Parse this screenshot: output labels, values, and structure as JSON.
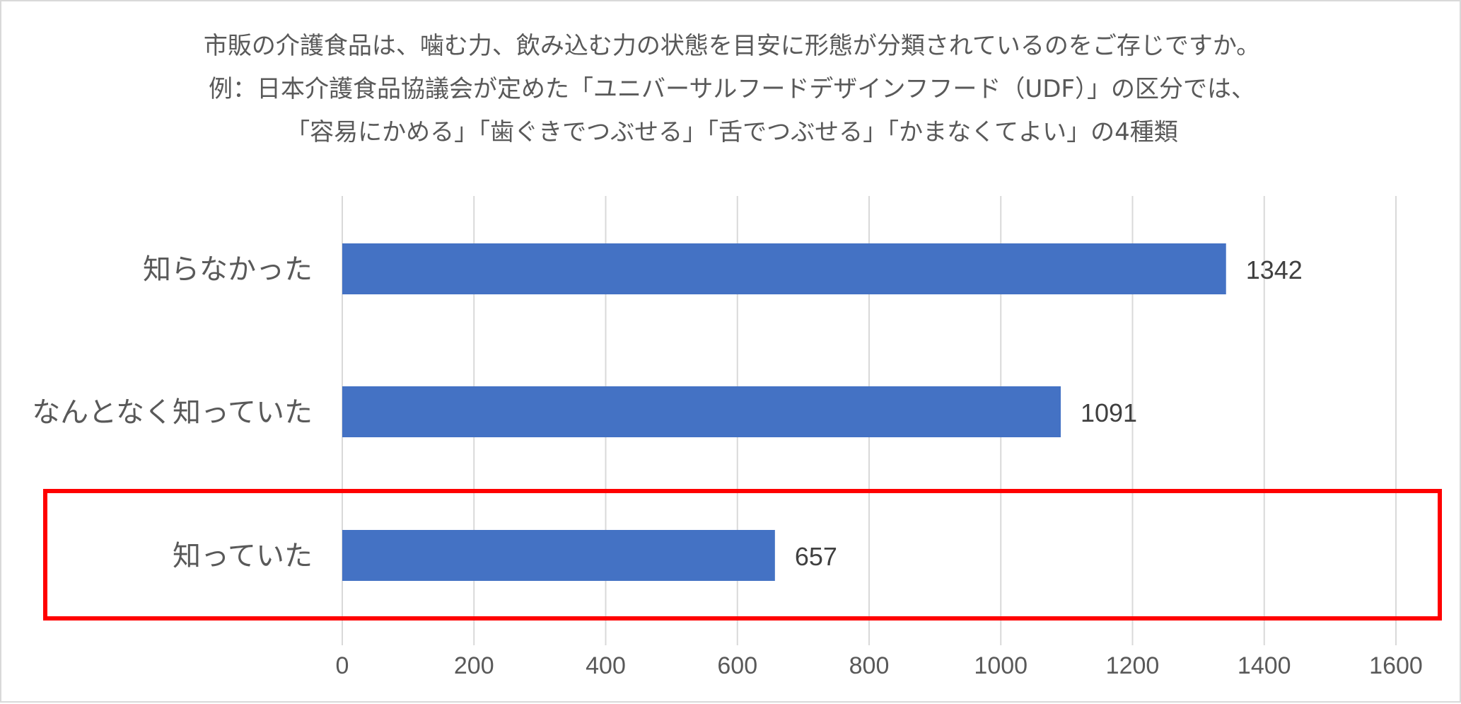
{
  "chart_data": {
    "type": "bar",
    "orientation": "horizontal",
    "title_lines": [
      "市販の介護食品は、噛む力、飲み込む力の状態を目安に形態が分類されているのをご存じですか。",
      "例：日本介護食品協議会が定めた「ユニバーサルフードデザインフフード（UDF）」の区分では、",
      "「容易にかめる」「歯ぐきでつぶせる」「舌でつぶせる」「かまなくてよい」の4種類"
    ],
    "categories": [
      "知らなかった",
      "なんとなく知っていた",
      "知っていた"
    ],
    "values": [
      1342,
      1091,
      657
    ],
    "data_labels": [
      "1342",
      "1091",
      "657"
    ],
    "xlim": [
      0,
      1600
    ],
    "x_ticks": [
      0,
      200,
      400,
      600,
      800,
      1000,
      1200,
      1400,
      1600
    ],
    "grid": "vertical",
    "legend": "none",
    "highlighted_category": "知っていた",
    "colors": {
      "bar": "#4472C4",
      "highlight_box": "#FF0000",
      "gridline": "#D9D9D9",
      "text": "#595959"
    }
  }
}
